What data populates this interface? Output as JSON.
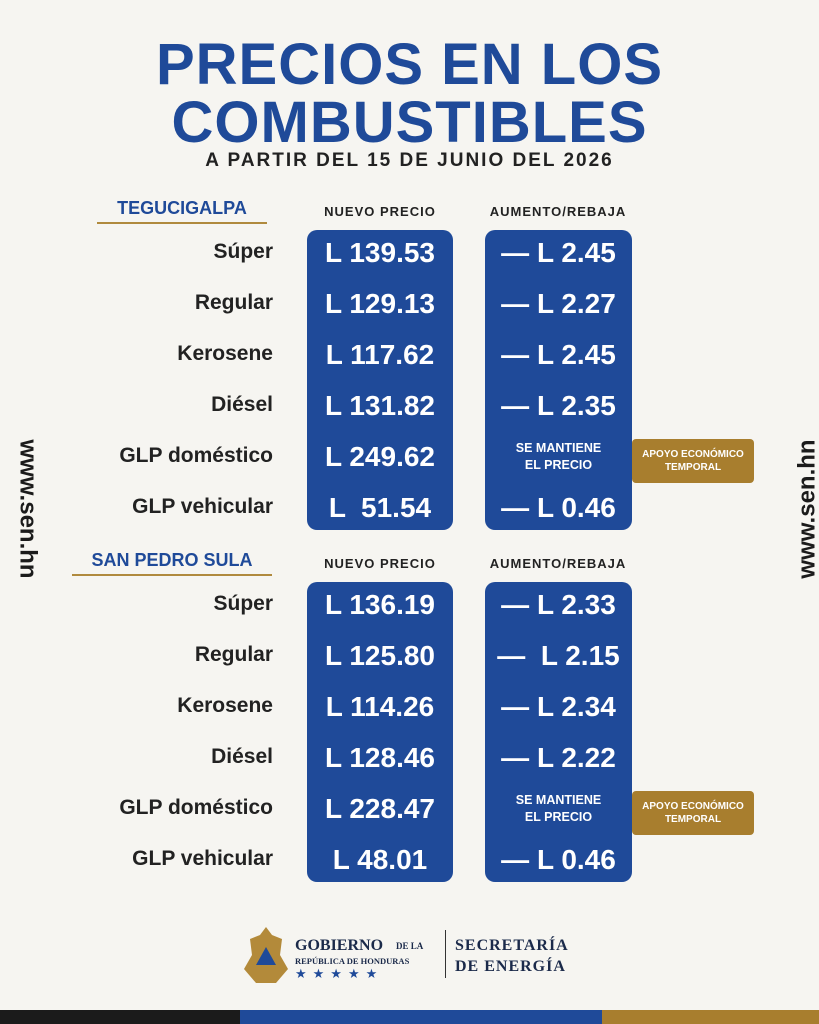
{
  "header": {
    "title": [
      "PRECIOS EN LOS",
      "COMBUSTIBLES"
    ],
    "subtitle": "A PARTIR DEL 15 DE JUNIO DEL 2026"
  },
  "side_text": "www.sen.hn",
  "sections": [
    {
      "city": "TEGUCIGALPA",
      "columns": [
        "NUEVO PRECIO",
        "AUMENTO/REBAJA"
      ],
      "rows": [
        {
          "fuel": "Súper",
          "price": "L 139.53",
          "change": "— L 2.45"
        },
        {
          "fuel": "Regular",
          "price": "L 129.13",
          "change": "— L 2.27"
        },
        {
          "fuel": "Kerosene",
          "price": "L 117.62",
          "change": "— L 2.45"
        },
        {
          "fuel": "Diésel",
          "price": "L 131.82",
          "change": "— L 2.35"
        },
        {
          "fuel": "GLP doméstico",
          "price": "L 249.62",
          "change": [
            "SE MANTIENE",
            "EL PRECIO"
          ],
          "note": [
            "APOYO ECONÓMICO",
            "TEMPORAL"
          ]
        },
        {
          "fuel": "GLP vehicular",
          "price": "L  51.54",
          "change": "— L 0.46"
        }
      ]
    },
    {
      "city": "SAN PEDRO SULA",
      "columns": [
        "NUEVO PRECIO",
        "AUMENTO/REBAJA"
      ],
      "rows": [
        {
          "fuel": "Súper",
          "price": "L 136.19",
          "change": "— L 2.33"
        },
        {
          "fuel": "Regular",
          "price": "L 125.80",
          "change": "—  L 2.15"
        },
        {
          "fuel": "Kerosene",
          "price": "L 114.26",
          "change": "— L 2.34"
        },
        {
          "fuel": "Diésel",
          "price": "L 128.46",
          "change": "— L 2.22"
        },
        {
          "fuel": "GLP doméstico",
          "price": "L 228.47",
          "change": [
            "SE MANTIENE",
            "EL PRECIO"
          ],
          "note": [
            "APOYO ECONÓMICO",
            "TEMPORAL"
          ]
        },
        {
          "fuel": "GLP vehicular",
          "price": "L 48.01",
          "change": "— L 0.46"
        }
      ]
    }
  ],
  "footer": {
    "government": [
      "GOBIERNO",
      "DE LA",
      "REPÚBLICA DE HONDURAS"
    ],
    "ministry": [
      "SECRETARÍA",
      "DE ENERGÍA"
    ]
  }
}
